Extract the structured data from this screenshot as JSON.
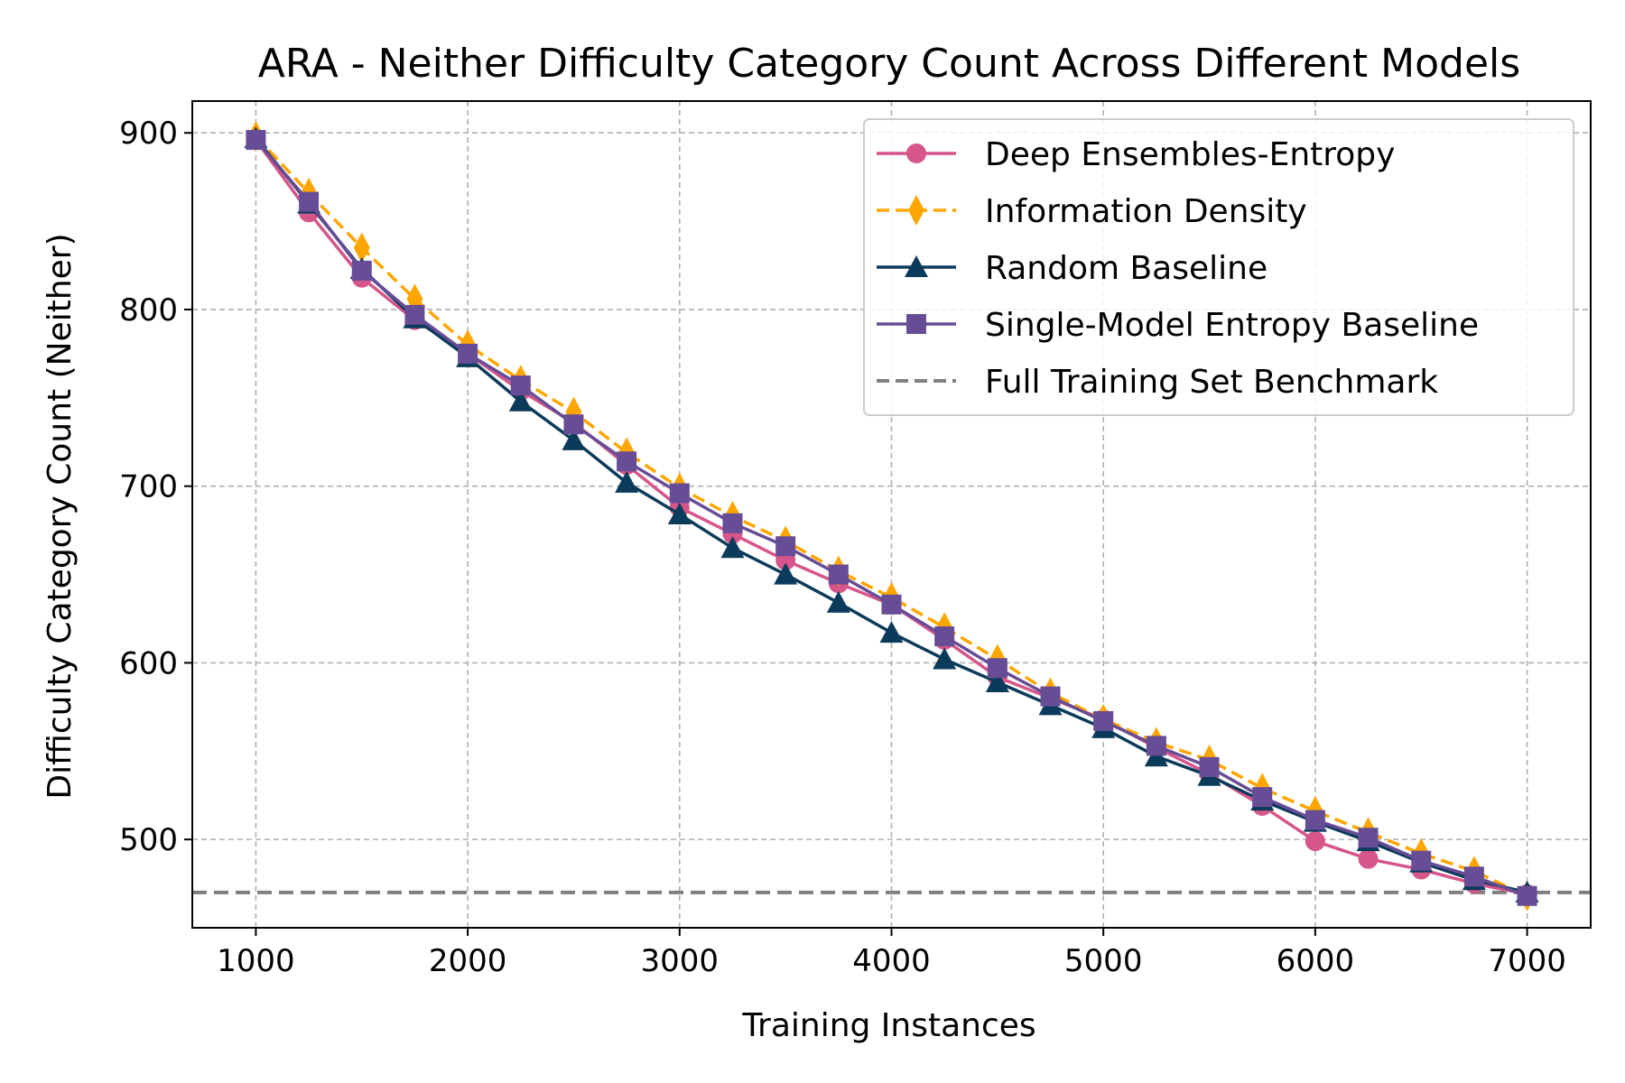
{
  "chart_data": {
    "type": "line",
    "title": "ARA - Neither Difficulty Category Count Across Different Models",
    "xlabel": "Training Instances",
    "ylabel": "Difficulty Category Count (Neither)",
    "xlim": [
      700,
      7300
    ],
    "ylim": [
      450,
      918
    ],
    "xticks": [
      1000,
      2000,
      3000,
      4000,
      5000,
      6000,
      7000
    ],
    "yticks": [
      500,
      600,
      700,
      800,
      900
    ],
    "grid": true,
    "legend_position": "top-right",
    "x": [
      1000,
      1250,
      1500,
      1750,
      2000,
      2250,
      2500,
      2750,
      3000,
      3250,
      3500,
      3750,
      4000,
      4250,
      4500,
      4750,
      5000,
      5250,
      5500,
      5750,
      6000,
      6250,
      6500,
      6750,
      7000
    ],
    "series": [
      {
        "name": "Deep Ensembles-Entropy",
        "color": "#d6558a",
        "marker": "circle",
        "linestyle": "solid",
        "values": [
          896,
          855,
          818,
          794,
          775,
          754,
          736,
          712,
          688,
          673,
          658,
          645,
          633,
          613,
          592,
          580,
          568,
          552,
          537,
          519,
          499,
          489,
          483,
          475,
          469
        ]
      },
      {
        "name": "Information Density",
        "color": "#ffa500",
        "marker": "diamond",
        "linestyle": "dashed",
        "values": [
          898,
          866,
          835,
          806,
          780,
          760,
          742,
          719,
          699,
          683,
          669,
          652,
          637,
          620,
          602,
          583,
          568,
          555,
          545,
          529,
          516,
          504,
          492,
          482,
          468
        ]
      },
      {
        "name": "Random Baseline",
        "color": "#0b3b5a",
        "marker": "triangle",
        "linestyle": "solid",
        "values": [
          897,
          860,
          823,
          795,
          773,
          748,
          726,
          702,
          684,
          665,
          650,
          634,
          617,
          602,
          589,
          576,
          563,
          547,
          536,
          522,
          510,
          499,
          487,
          477,
          470
        ]
      },
      {
        "name": "Single-Model Entropy Baseline",
        "color": "#674d96",
        "marker": "square",
        "linestyle": "solid",
        "values": [
          896,
          861,
          822,
          797,
          775,
          757,
          735,
          714,
          696,
          679,
          666,
          650,
          633,
          615,
          597,
          581,
          567,
          553,
          541,
          524,
          511,
          501,
          488,
          479,
          468
        ]
      }
    ],
    "benchmark": {
      "name": "Full Training Set Benchmark",
      "value": 470,
      "color": "#808080",
      "linestyle": "dashed"
    }
  }
}
